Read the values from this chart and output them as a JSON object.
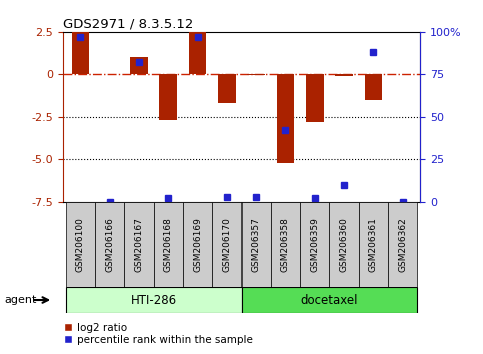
{
  "title": "GDS2971 / 8.3.5.12",
  "samples": [
    "GSM206100",
    "GSM206166",
    "GSM206167",
    "GSM206168",
    "GSM206169",
    "GSM206170",
    "GSM206357",
    "GSM206358",
    "GSM206359",
    "GSM206360",
    "GSM206361",
    "GSM206362"
  ],
  "log2_ratio": [
    2.5,
    0.0,
    1.0,
    -2.7,
    2.5,
    -1.7,
    -0.05,
    -5.2,
    -2.8,
    -0.1,
    -1.5,
    0.0
  ],
  "percentile_rank": [
    97,
    0,
    82,
    2,
    97,
    3,
    3,
    42,
    2,
    10,
    88,
    0
  ],
  "group1_label": "HTI-286",
  "group2_label": "docetaxel",
  "group1_count": 6,
  "group2_count": 6,
  "ylim_min": -7.5,
  "ylim_max": 2.5,
  "yticks_left": [
    2.5,
    0.0,
    -2.5,
    -5.0,
    -7.5
  ],
  "yticks_right_pct": [
    100,
    75,
    50,
    25,
    0
  ],
  "bar_color": "#aa2200",
  "blue_color": "#2222cc",
  "hline_color": "#cc2200",
  "group1_facecolor": "#ccffcc",
  "group2_facecolor": "#55dd55",
  "sample_box_color": "#cccccc",
  "agent_label": "agent",
  "legend_bar_label": "log2 ratio",
  "legend_dot_label": "percentile rank within the sample",
  "background_color": "#ffffff"
}
